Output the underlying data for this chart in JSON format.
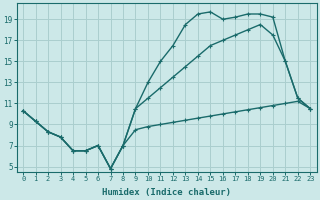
{
  "xlabel": "Humidex (Indice chaleur)",
  "background_color": "#cce8e8",
  "grid_color": "#aacece",
  "line_color": "#1a6b6b",
  "xlim": [
    -0.5,
    23.5
  ],
  "ylim": [
    4.5,
    20.5
  ],
  "xticks": [
    0,
    1,
    2,
    3,
    4,
    5,
    6,
    7,
    8,
    9,
    10,
    11,
    12,
    13,
    14,
    15,
    16,
    17,
    18,
    19,
    20,
    21,
    22,
    23
  ],
  "yticks": [
    5,
    7,
    9,
    11,
    13,
    15,
    17,
    19
  ],
  "line1_x": [
    0,
    1,
    2,
    3,
    4,
    5,
    6,
    7,
    8,
    9,
    10,
    11,
    12,
    13,
    14,
    15,
    16,
    17,
    18,
    19,
    20,
    21,
    22,
    23
  ],
  "line1_y": [
    10.3,
    9.3,
    8.3,
    7.8,
    6.5,
    6.5,
    7.0,
    4.8,
    7.0,
    8.5,
    8.8,
    9.0,
    9.2,
    9.4,
    9.6,
    9.8,
    10.0,
    10.2,
    10.4,
    10.6,
    10.8,
    11.0,
    11.2,
    10.5
  ],
  "line2_x": [
    0,
    1,
    2,
    3,
    4,
    5,
    6,
    7,
    8,
    9,
    10,
    11,
    12,
    13,
    14,
    15,
    16,
    17,
    18,
    19,
    20,
    21,
    22,
    23
  ],
  "line2_y": [
    10.3,
    9.3,
    8.3,
    7.8,
    6.5,
    6.5,
    7.0,
    4.8,
    7.0,
    10.5,
    11.5,
    12.5,
    13.5,
    14.5,
    15.5,
    16.5,
    17.0,
    17.5,
    18.0,
    18.5,
    17.5,
    15.0,
    11.5,
    10.5
  ],
  "line3_x": [
    0,
    1,
    2,
    3,
    4,
    5,
    6,
    7,
    8,
    9,
    10,
    11,
    12,
    13,
    14,
    15,
    16,
    17,
    18,
    19,
    20,
    21,
    22,
    23
  ],
  "line3_y": [
    10.3,
    9.3,
    8.3,
    7.8,
    6.5,
    6.5,
    7.0,
    4.8,
    7.0,
    10.5,
    13.0,
    15.0,
    16.5,
    18.5,
    19.5,
    19.7,
    19.0,
    19.2,
    19.5,
    19.5,
    19.2,
    15.0,
    11.5,
    10.5
  ],
  "marker_size": 3.5,
  "line_width": 1.0
}
